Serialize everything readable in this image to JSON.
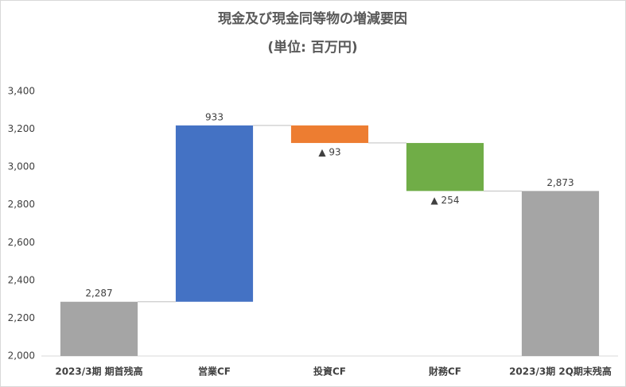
{
  "chart_data": {
    "type": "waterfall",
    "title": "現金及び現金同等物の増減要因",
    "subtitle": "(単位: 百万円)",
    "categories": [
      "2023/3期 期首残高",
      "営業CF",
      "投資CF",
      "財務CF",
      "2023/3期 2Q期末残高"
    ],
    "values": [
      2287,
      933,
      -93,
      -254,
      2873
    ],
    "value_labels": [
      "2,287",
      "933",
      "▲ 93",
      "▲ 254",
      "2,873"
    ],
    "is_total": [
      true,
      false,
      false,
      false,
      true
    ],
    "colors": [
      "#a5a5a5",
      "#4472c4",
      "#ed7d31",
      "#70ad47",
      "#a5a5a5"
    ],
    "ylim": [
      2000,
      3400
    ],
    "yticks": [
      {
        "value": 2000,
        "label": "2,000"
      },
      {
        "value": 2200,
        "label": "2,200"
      },
      {
        "value": 2400,
        "label": "2,400"
      },
      {
        "value": 2600,
        "label": "2,600"
      },
      {
        "value": 2800,
        "label": "2,800"
      },
      {
        "value": 3000,
        "label": "3,000"
      },
      {
        "value": 3200,
        "label": "3,200"
      },
      {
        "value": 3400,
        "label": "3,400"
      }
    ],
    "grid": false
  }
}
